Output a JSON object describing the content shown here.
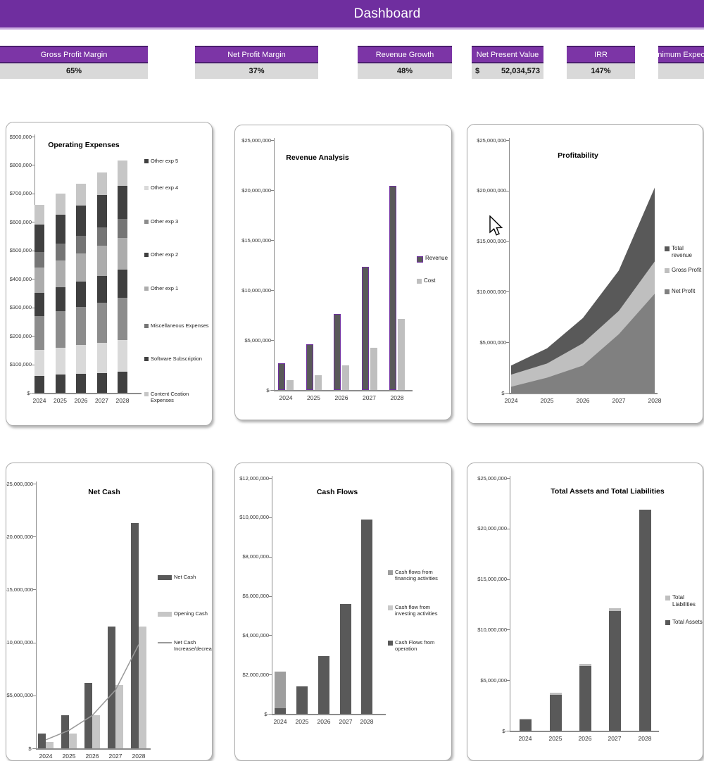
{
  "title": "Dashboard",
  "colors": {
    "header_purple": "#6F2E9F",
    "kpi_header_purple": "#7C35A6",
    "kpi_header_border": "#4A1D6E",
    "kpi_value_bg": "#D9D9D9",
    "revenue_border_purple": "#7030A0",
    "dark_gray": "#595959",
    "medium_gray": "#808080",
    "light_gray": "#BFBFBF"
  },
  "kpis": [
    {
      "label": "Gross Profit Margin",
      "value": "65%"
    },
    {
      "label": "Net Profit Margin",
      "value": "37%"
    },
    {
      "label": "Revenue Growth",
      "value": "48%"
    },
    {
      "label": "Net Present Value",
      "prefix": "$",
      "value": "52,034,573"
    },
    {
      "label": "IRR",
      "value": "147%"
    },
    {
      "label": "Minimum Expected Return",
      "value": ""
    }
  ],
  "chart_data": [
    {
      "type": "bar",
      "variant": "stacked",
      "title": "Operating Expenses",
      "categories": [
        "2024",
        "2025",
        "2026",
        "2027",
        "2028"
      ],
      "xlabel": "",
      "ylabel": "",
      "ylim": [
        0,
        900000
      ],
      "ytick": 100000,
      "legend_position": "right",
      "grid": false,
      "series": [
        {
          "name": "Other exp 5",
          "color": "#404040",
          "values": [
            60000,
            64000,
            67000,
            70000,
            74000
          ]
        },
        {
          "name": "Other exp 4",
          "color": "#D9D9D9",
          "values": [
            90000,
            95000,
            100000,
            106000,
            111000
          ]
        },
        {
          "name": "Other exp 3",
          "color": "#8C8C8C",
          "values": [
            120000,
            127000,
            134000,
            141000,
            148000
          ]
        },
        {
          "name": "Other exp 2",
          "color": "#3F3F3F",
          "values": [
            80000,
            85000,
            89000,
            94000,
            99000
          ]
        },
        {
          "name": "Other exp 1",
          "color": "#ACACAC",
          "values": [
            90000,
            95000,
            100000,
            106000,
            111000
          ]
        },
        {
          "name": "Miscellaneous Expenses",
          "color": "#757575",
          "values": [
            55000,
            58000,
            61000,
            65000,
            68000
          ]
        },
        {
          "name": "Software Subscription",
          "color": "#404040",
          "values": [
            95000,
            101000,
            106000,
            112000,
            117000
          ]
        },
        {
          "name": "Content Ceation Expenses",
          "color": "#C6C6C6",
          "values": [
            70000,
            75000,
            78000,
            81000,
            87000
          ]
        }
      ]
    },
    {
      "type": "bar",
      "variant": "grouped",
      "title": "Revenue Analysis",
      "categories": [
        "2024",
        "2025",
        "2026",
        "2027",
        "2028"
      ],
      "xlabel": "",
      "ylabel": "",
      "ylim": [
        0,
        25000000
      ],
      "ytick": 5000000,
      "legend_position": "right",
      "grid": false,
      "series": [
        {
          "name": "Revenue",
          "color": "#595959",
          "border": "#7030A0",
          "values": [
            2700000,
            4600000,
            7600000,
            12300000,
            20400000
          ]
        },
        {
          "name": "Cost",
          "color": "#BFBFBF",
          "values": [
            1000000,
            1500000,
            2500000,
            4200000,
            7100000
          ]
        }
      ]
    },
    {
      "type": "area",
      "title": "Profitability",
      "categories": [
        "2024",
        "2025",
        "2026",
        "2027",
        "2028"
      ],
      "xlabel": "",
      "ylabel": "",
      "ylim": [
        0,
        25000000
      ],
      "ytick": 5000000,
      "legend_position": "right",
      "grid": false,
      "series": [
        {
          "name": "Total revenue",
          "color": "#595959",
          "values": [
            2700000,
            4400000,
            7400000,
            12100000,
            20300000
          ]
        },
        {
          "name": "Gross Profit",
          "color": "#BFBFBF",
          "values": [
            1800000,
            2900000,
            4900000,
            8100000,
            13000000
          ]
        },
        {
          "name": "Net Profit",
          "color": "#808080",
          "values": [
            600000,
            1500000,
            2700000,
            5800000,
            9800000
          ]
        }
      ]
    },
    {
      "type": "bar",
      "variant": "grouped-with-line",
      "title": "Net Cash",
      "categories": [
        "2024",
        "2025",
        "2026",
        "2027",
        "2028"
      ],
      "xlabel": "",
      "ylabel": "",
      "ylim": [
        0,
        25000000
      ],
      "ytick": 5000000,
      "legend_position": "right",
      "grid": false,
      "series": [
        {
          "name": "Net Cash",
          "kind": "bar",
          "color": "#595959",
          "values": [
            1400000,
            3100000,
            6200000,
            11500000,
            21300000
          ]
        },
        {
          "name": "Opening Cash",
          "kind": "bar",
          "color": "#C6C6C6",
          "values": [
            600000,
            1400000,
            3100000,
            6000000,
            11500000
          ]
        },
        {
          "name": "Net Cash Increase/decrease",
          "kind": "line",
          "color": "#999999",
          "values": [
            800000,
            1700000,
            3100000,
            5500000,
            9800000
          ]
        }
      ]
    },
    {
      "type": "bar",
      "variant": "overlap",
      "title": "Cash Flows",
      "categories": [
        "2024",
        "2025",
        "2026",
        "2027",
        "2028"
      ],
      "xlabel": "",
      "ylabel": "",
      "ylim": [
        0,
        12000000
      ],
      "ytick": 2000000,
      "legend_position": "right",
      "grid": false,
      "series": [
        {
          "name": "Cash flows from financing activities",
          "color": "#9E9E9E",
          "values": [
            2150000,
            100000,
            100000,
            100000,
            100000
          ]
        },
        {
          "name": "Cash flow from investing activities",
          "color": "#C9C9C9",
          "values": [
            200000,
            100000,
            100000,
            100000,
            100000
          ]
        },
        {
          "name": "Cash Flows from operation",
          "color": "#595959",
          "values": [
            300000,
            1400000,
            2950000,
            5600000,
            9900000
          ]
        }
      ]
    },
    {
      "type": "bar",
      "variant": "overlap",
      "title": "Total Assets and Total Liabilities",
      "categories": [
        "2024",
        "2025",
        "2026",
        "2027",
        "2028"
      ],
      "xlabel": "",
      "ylabel": "",
      "ylim": [
        0,
        25000000
      ],
      "ytick": 5000000,
      "legend_position": "right",
      "grid": false,
      "series": [
        {
          "name": "Total Liabilities",
          "color": "#BFBFBF",
          "values": [
            1200000,
            3750000,
            6650000,
            12100000,
            21900000
          ]
        },
        {
          "name": "Total Assets",
          "color": "#595959",
          "values": [
            1100000,
            3550000,
            6400000,
            11850000,
            21900000
          ]
        }
      ]
    }
  ]
}
